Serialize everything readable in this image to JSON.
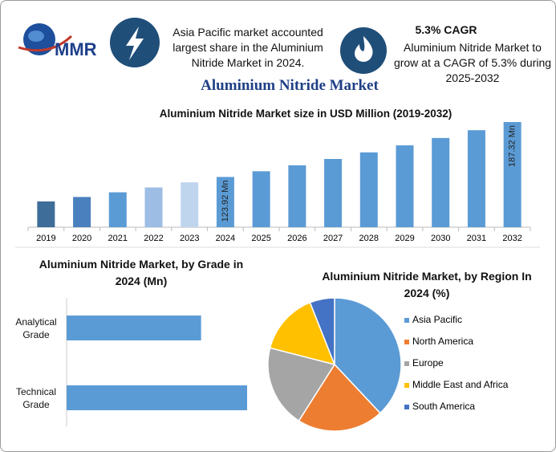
{
  "header": {
    "logo": "MMR",
    "fact1": "Asia Pacific market accounted largest share in the Aluminium Nitride Market in 2024.",
    "fact2_title": "5.3% CAGR",
    "fact2": "Aluminium Nitride Market to grow at a CAGR of 5.3% during 2025-2032",
    "title": "Aluminium Nitride Market"
  },
  "chart_data": [
    {
      "type": "bar",
      "title": "Aluminium Nitride Market size in USD Million (2019-2032)",
      "categories": [
        "2019",
        "2020",
        "2021",
        "2022",
        "2023",
        "2024",
        "2025",
        "2026",
        "2027",
        "2028",
        "2029",
        "2030",
        "2031",
        "2032"
      ],
      "values": [
        95.7,
        100.8,
        106.2,
        111.8,
        117.7,
        123.92,
        130.5,
        137.4,
        144.7,
        152.3,
        160.4,
        168.9,
        177.9,
        187.32
      ],
      "value_labels": [
        null,
        null,
        null,
        null,
        null,
        "123.92 Mn",
        null,
        null,
        null,
        null,
        null,
        null,
        null,
        "187.32 Mn"
      ],
      "colors": [
        "#3d6d98",
        "#4a80bd",
        "#5b9bd5",
        "#9dbde4",
        "#bfd5ee",
        "#5b9bd5",
        "#5b9bd5",
        "#5b9bd5",
        "#5b9bd5",
        "#5b9bd5",
        "#5b9bd5",
        "#5b9bd5",
        "#5b9bd5",
        "#5b9bd5"
      ]
    },
    {
      "type": "hbar",
      "title": "Aluminium Nitride Market, by Grade in 2024 (Mn)",
      "categories": [
        "Analytical Grade",
        "Technical Grade"
      ],
      "values": [
        52.9,
        71.0
      ],
      "color": "#5b9bd5"
    },
    {
      "type": "pie",
      "title": "Aluminium Nitride Market, by Region In 2024 (%)",
      "categories": [
        "Asia Pacific",
        "North America",
        "Europe",
        "Middle East and Africa",
        "South America"
      ],
      "values": [
        38,
        21,
        20,
        15,
        6
      ],
      "colors": [
        "#5b9bd5",
        "#ed7d31",
        "#a5a5a5",
        "#ffc000",
        "#4472c4"
      ],
      "legend": "right"
    }
  ]
}
